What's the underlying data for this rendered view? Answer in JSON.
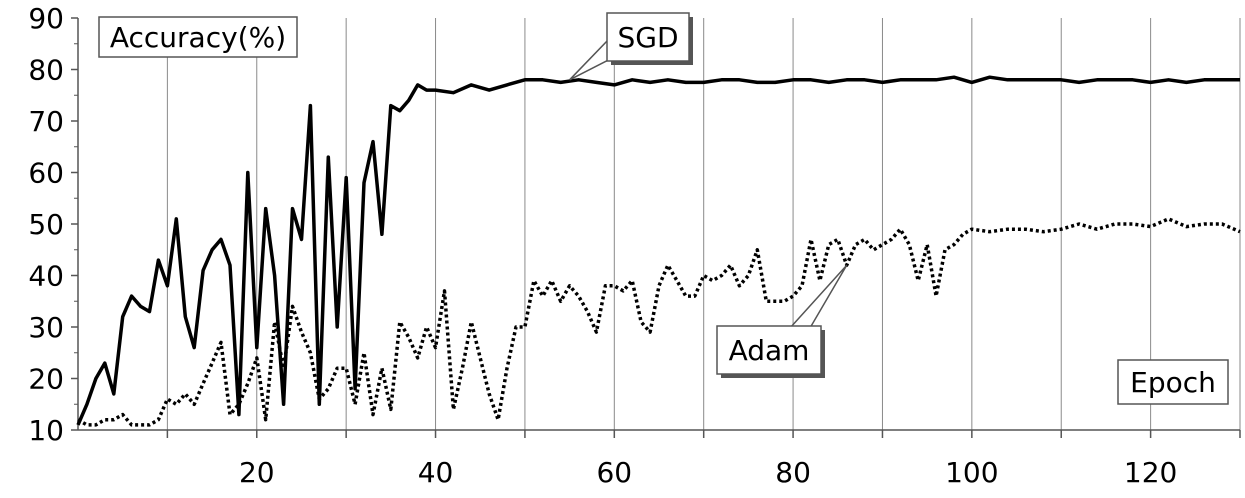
{
  "chart_data": {
    "type": "line",
    "title": "",
    "xlabel": "Epoch",
    "ylabel": "Accuracy(%)",
    "xlim": [
      0,
      130
    ],
    "ylim": [
      10,
      90
    ],
    "x_ticks": [
      20,
      40,
      60,
      80,
      100,
      120
    ],
    "x_gridlines": [
      10,
      20,
      30,
      40,
      50,
      60,
      70,
      80,
      90,
      100,
      110,
      120,
      130
    ],
    "y_ticks": [
      10,
      20,
      30,
      40,
      50,
      60,
      70,
      80,
      90
    ],
    "grid": "vertical",
    "series": [
      {
        "name": "SGD",
        "style": "solid",
        "color": "#000000",
        "x": [
          0,
          1,
          2,
          3,
          4,
          5,
          6,
          7,
          8,
          9,
          10,
          11,
          12,
          13,
          14,
          15,
          16,
          17,
          18,
          19,
          20,
          21,
          22,
          23,
          24,
          25,
          26,
          27,
          28,
          29,
          30,
          31,
          32,
          33,
          34,
          35,
          36,
          37,
          38,
          39,
          40,
          42,
          44,
          46,
          48,
          50,
          52,
          54,
          56,
          58,
          60,
          62,
          64,
          66,
          68,
          70,
          72,
          74,
          76,
          78,
          80,
          82,
          84,
          86,
          88,
          90,
          92,
          94,
          96,
          98,
          100,
          102,
          104,
          106,
          108,
          110,
          112,
          114,
          116,
          118,
          120,
          122,
          124,
          126,
          128,
          130
        ],
        "values": [
          11,
          15,
          20,
          23,
          17,
          32,
          36,
          34,
          33,
          43,
          38,
          51,
          32,
          26,
          41,
          45,
          47,
          42,
          13,
          60,
          26,
          53,
          40,
          15,
          53,
          47,
          73,
          15,
          63,
          30,
          59,
          18,
          58,
          66,
          48,
          73,
          72,
          74,
          77,
          76,
          76,
          75.5,
          77,
          76,
          77,
          78,
          78,
          77.5,
          78,
          77.5,
          77,
          78,
          77.5,
          78,
          77.5,
          77.5,
          78,
          78,
          77.5,
          77.5,
          78,
          78,
          77.5,
          78,
          78,
          77.5,
          78,
          78,
          78,
          78.5,
          77.5,
          78.5,
          78,
          78,
          78,
          78,
          77.5,
          78,
          78,
          78,
          77.5,
          78,
          77.5,
          78,
          78,
          78
        ]
      },
      {
        "name": "Adam",
        "style": "dotted",
        "color": "#000000",
        "x": [
          0,
          1,
          2,
          3,
          4,
          5,
          6,
          7,
          8,
          9,
          10,
          11,
          12,
          13,
          14,
          15,
          16,
          17,
          18,
          19,
          20,
          21,
          22,
          23,
          24,
          25,
          26,
          27,
          28,
          29,
          30,
          31,
          32,
          33,
          34,
          35,
          36,
          37,
          38,
          39,
          40,
          41,
          42,
          43,
          44,
          45,
          46,
          47,
          48,
          49,
          50,
          51,
          52,
          53,
          54,
          55,
          56,
          57,
          58,
          59,
          60,
          61,
          62,
          63,
          64,
          65,
          66,
          67,
          68,
          69,
          70,
          71,
          72,
          73,
          74,
          75,
          76,
          77,
          78,
          79,
          80,
          81,
          82,
          83,
          84,
          85,
          86,
          87,
          88,
          89,
          90,
          91,
          92,
          93,
          94,
          95,
          96,
          97,
          98,
          99,
          100,
          102,
          104,
          106,
          108,
          110,
          112,
          114,
          116,
          118,
          120,
          122,
          124,
          126,
          128,
          130
        ],
        "values": [
          12,
          11,
          11,
          12,
          12,
          13,
          11,
          11,
          11,
          12,
          16,
          15,
          17,
          15,
          19,
          23,
          27,
          13,
          15,
          19,
          24,
          12,
          31,
          22,
          34,
          29,
          25,
          16,
          18,
          22,
          22,
          15,
          25,
          13,
          22,
          14,
          31,
          28,
          24,
          30,
          26,
          37,
          14,
          22,
          31,
          24,
          17,
          12,
          22,
          30,
          30,
          39,
          36,
          39,
          35,
          38,
          36,
          33,
          29,
          38,
          38,
          37,
          39,
          31,
          29,
          38,
          42,
          39,
          36,
          36,
          40,
          39,
          40,
          42,
          38,
          40,
          45,
          35,
          35,
          35,
          36,
          38,
          47,
          39,
          46,
          47,
          42,
          46,
          47,
          45,
          46,
          47,
          49,
          46,
          39,
          46,
          36,
          45,
          46,
          48,
          49,
          48.5,
          49,
          49,
          48.5,
          49,
          50,
          49,
          50,
          50,
          49.5,
          51,
          49.5,
          50,
          50,
          48.5
        ]
      }
    ]
  }
}
